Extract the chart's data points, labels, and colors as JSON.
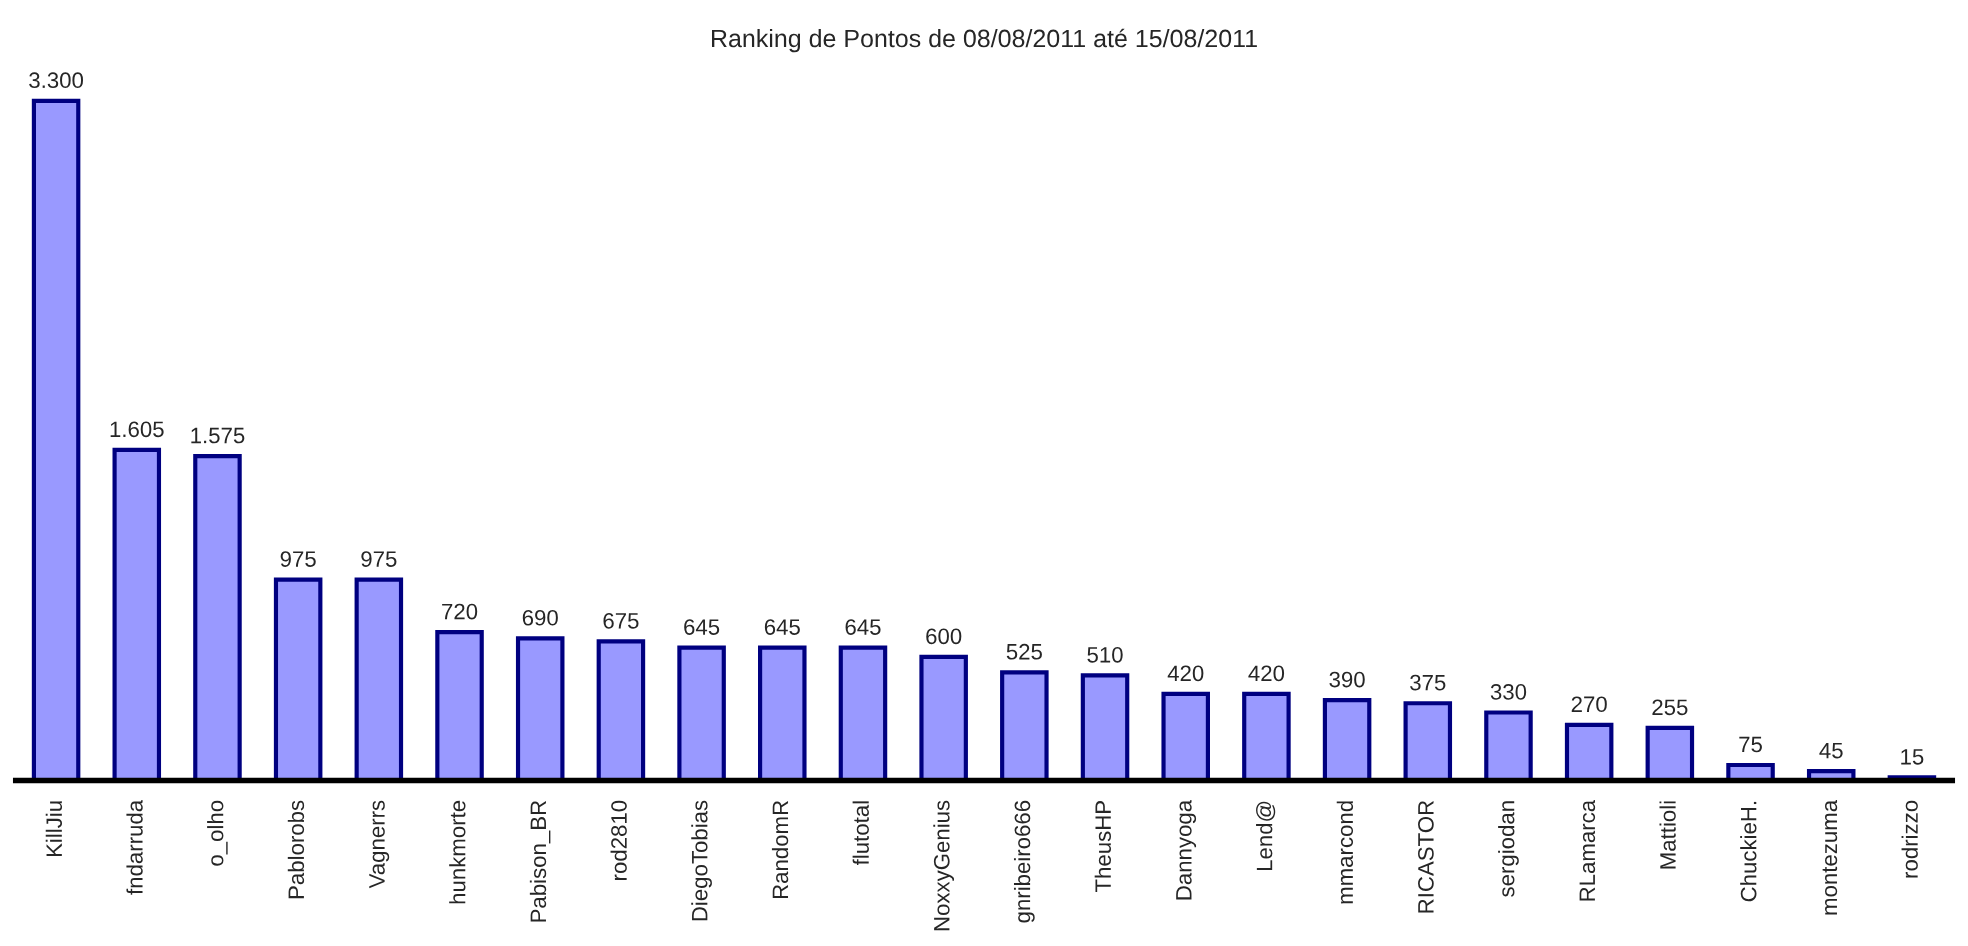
{
  "chart_data": {
    "type": "bar",
    "title": "Ranking de Pontos de 08/08/2011 até 15/08/2011",
    "categories": [
      "KillJiu",
      "fndarruda",
      "o_olho",
      "Pablorobs",
      "Vagnerrs",
      "hunkmorte",
      "Pabison_BR",
      "rod2810",
      "DiegoTobias",
      "RandomR",
      "flutotal",
      "NoxxyGenius",
      "gnribeiro666",
      "TheusHP",
      "Dannyoga",
      "Lend@",
      "mmarcond",
      "RICASTOR",
      "sergiodan",
      "RLamarca",
      "Mattioli",
      "ChuckieH.",
      "montezuma",
      "rodrizzo"
    ],
    "values": [
      3300,
      1605,
      1575,
      975,
      975,
      720,
      690,
      675,
      645,
      645,
      645,
      600,
      525,
      510,
      420,
      420,
      390,
      375,
      330,
      270,
      255,
      75,
      45,
      15
    ],
    "value_labels": [
      "3.300",
      "1.605",
      "1.575",
      "975",
      "975",
      "720",
      "690",
      "675",
      "645",
      "645",
      "645",
      "600",
      "525",
      "510",
      "420",
      "420",
      "390",
      "375",
      "330",
      "270",
      "255",
      "75",
      "45",
      "15"
    ],
    "color": "#9999ff",
    "grid": false,
    "legend": false
  }
}
